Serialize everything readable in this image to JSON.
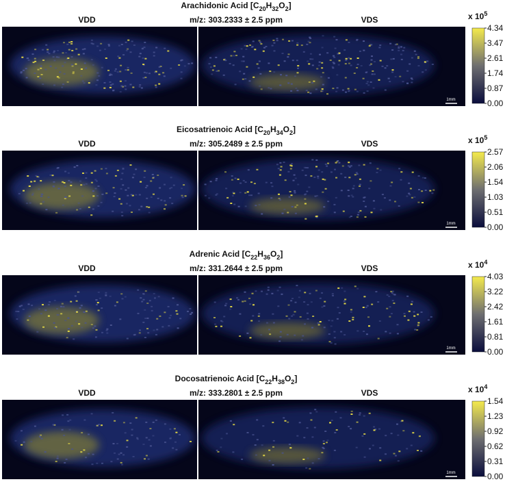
{
  "panels": [
    {
      "title": [
        "Arachidonic Acid [C",
        "20",
        "H",
        "32",
        "O",
        "2",
        "]"
      ],
      "mz": "m/z: 303.2333 ± 2.5 ppm",
      "left": "VDD",
      "right": "VDS",
      "scale": [
        "x 10",
        "5"
      ],
      "ticks": [
        "4.34",
        "3.47",
        "2.61",
        "1.74",
        "0.87",
        "0.00"
      ],
      "scalebar": "1mm"
    },
    {
      "title": [
        "Eicosatrienoic Acid [C",
        "20",
        "H",
        "34",
        "O",
        "2",
        "]"
      ],
      "mz": "m/z: 305.2489 ± 2.5 ppm",
      "left": "VDD",
      "right": "VDS",
      "scale": [
        "x 10",
        "5"
      ],
      "ticks": [
        "2.57",
        "2.06",
        "1.54",
        "1.03",
        "0.51",
        "0.00"
      ],
      "scalebar": "1mm"
    },
    {
      "title": [
        "Adrenic Acid [C",
        "22",
        "H",
        "36",
        "O",
        "2",
        "]"
      ],
      "mz": "m/z: 331.2644 ± 2.5 ppm",
      "left": "VDD",
      "right": "VDS",
      "scale": [
        "x 10",
        "4"
      ],
      "ticks": [
        "4.03",
        "3.22",
        "2.42",
        "1.61",
        "0.81",
        "0.00"
      ],
      "scalebar": "1mm"
    },
    {
      "title": [
        "Docosatrienoic Acid [C",
        "22",
        "H",
        "38",
        "O",
        "2",
        "]"
      ],
      "mz": "m/z: 333.2801 ± 2.5 ppm",
      "left": "VDD",
      "right": "VDS",
      "scale": [
        "x 10",
        "4"
      ],
      "ticks": [
        "1.54",
        "1.23",
        "0.92",
        "0.62",
        "0.31",
        "0.00"
      ],
      "scalebar": "1mm"
    }
  ]
}
